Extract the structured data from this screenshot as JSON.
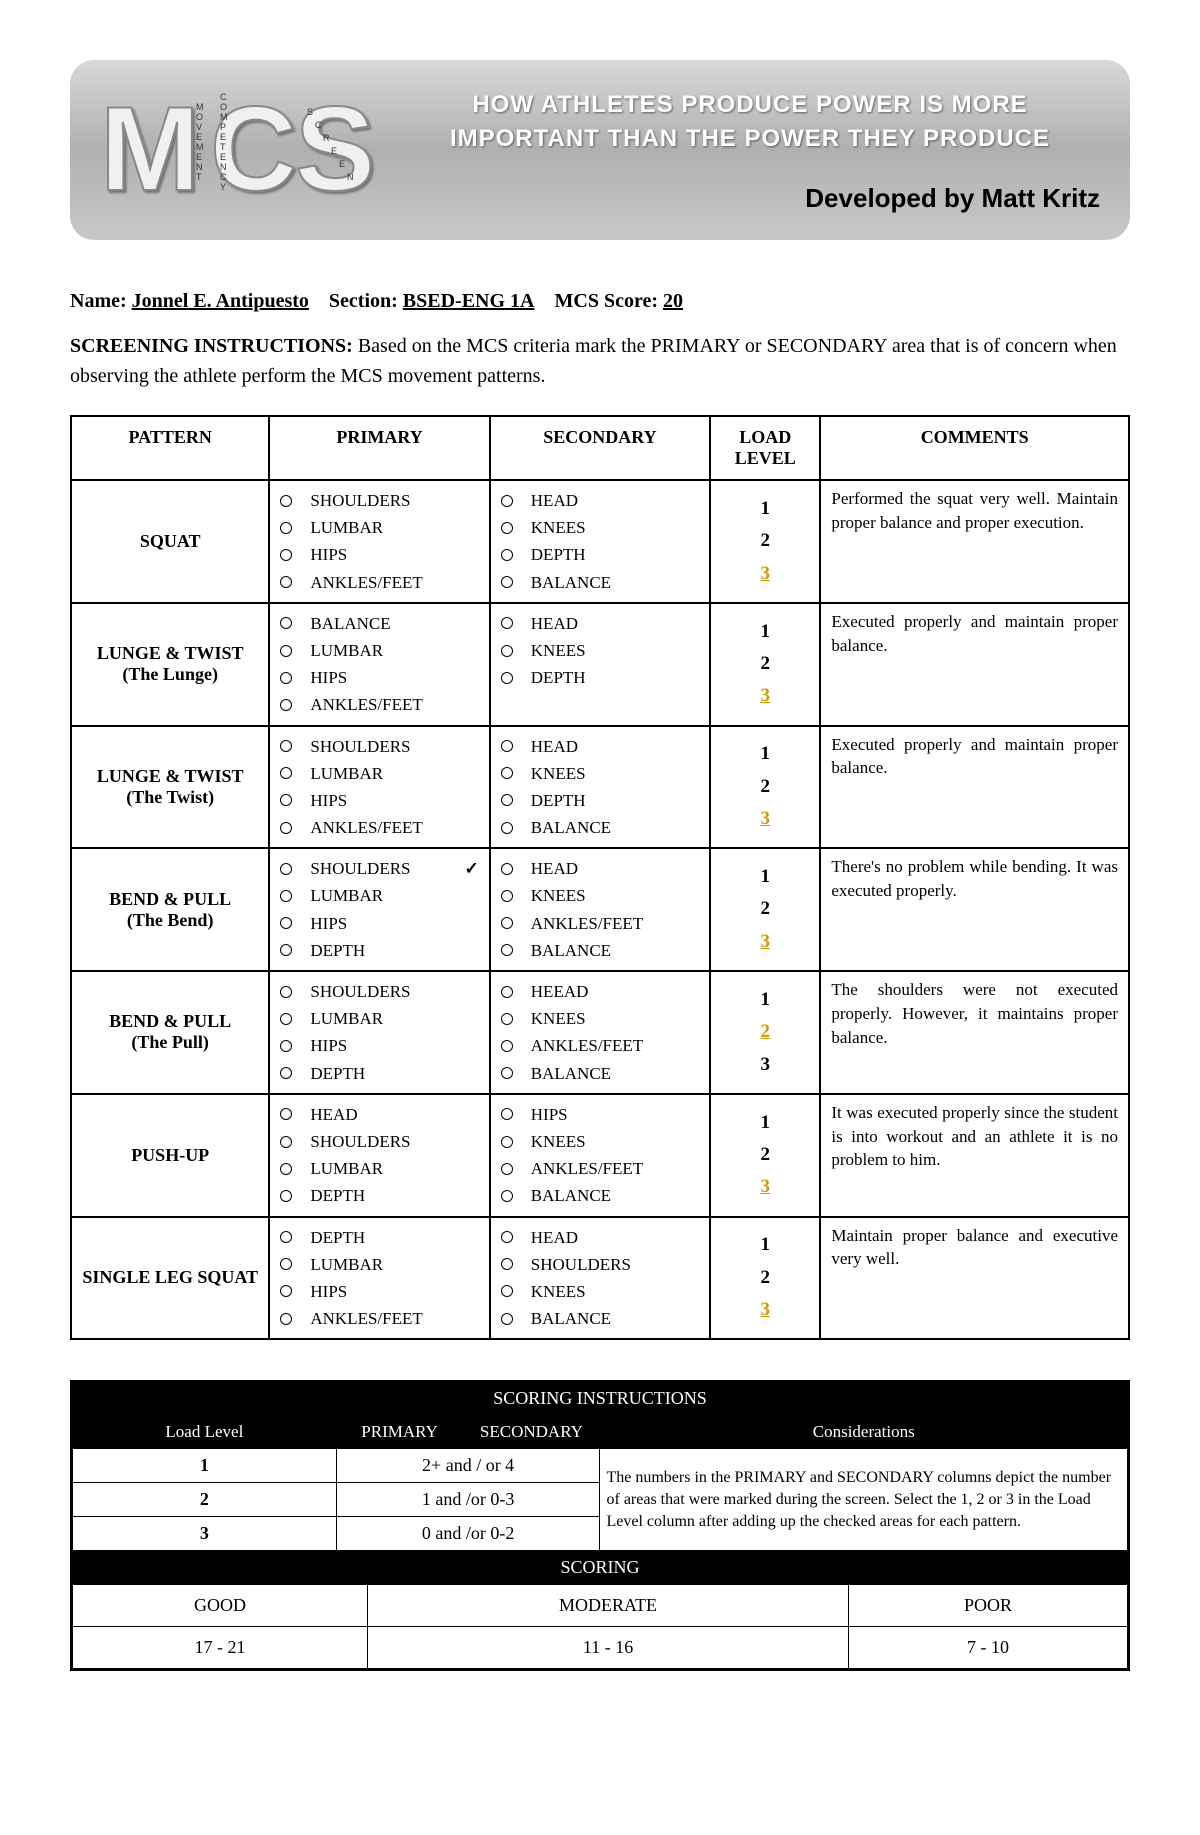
{
  "header": {
    "slogan_line1": "HOW ATHLETES PRODUCE POWER IS MORE",
    "slogan_line2": "IMPORTANT THAN THE POWER THEY PRODUCE",
    "developed_by": "Developed by Matt Kritz",
    "logo_letters": [
      "M",
      "C",
      "S"
    ],
    "logo_words": [
      "MOVEMENT",
      "COMPETENCY",
      "SCREEN"
    ]
  },
  "info": {
    "name_label": "Name:",
    "name_value": "Jonnel E. Antipuesto",
    "section_label": "Section:",
    "section_value": "BSED-ENG 1A",
    "score_label": "MCS Score:",
    "score_value": "20"
  },
  "instructions": {
    "label": "SCREENING INSTRUCTIONS:",
    "text": "Based on the MCS criteria mark the PRIMARY or SECONDARY area that is of concern when observing the athlete perform the MCS movement patterns."
  },
  "table": {
    "headers": [
      "PATTERN",
      "PRIMARY",
      "SECONDARY",
      "LOAD LEVEL",
      "COMMENTS"
    ],
    "rows": [
      {
        "pattern": "SQUAT",
        "primary": [
          {
            "t": "SHOULDERS"
          },
          {
            "t": "LUMBAR"
          },
          {
            "t": "HIPS"
          },
          {
            "t": "ANKLES/FEET"
          }
        ],
        "secondary": [
          {
            "t": "HEAD"
          },
          {
            "t": "KNEES"
          },
          {
            "t": "DEPTH"
          },
          {
            "t": "BALANCE"
          }
        ],
        "loads": [
          "1",
          "2",
          "3"
        ],
        "selected": 2,
        "comment": "Performed the squat very well. Maintain proper balance and proper execution."
      },
      {
        "pattern": "LUNGE & TWIST (The Lunge)",
        "primary": [
          {
            "t": "BALANCE"
          },
          {
            "t": "LUMBAR"
          },
          {
            "t": "HIPS"
          },
          {
            "t": "ANKLES/FEET"
          }
        ],
        "secondary": [
          {
            "t": "HEAD"
          },
          {
            "t": "KNEES"
          },
          {
            "t": "DEPTH"
          }
        ],
        "loads": [
          "1",
          "2",
          "3"
        ],
        "selected": 2,
        "comment": "Executed properly and maintain proper balance."
      },
      {
        "pattern": "LUNGE & TWIST (The Twist)",
        "primary": [
          {
            "t": "SHOULDERS"
          },
          {
            "t": "LUMBAR"
          },
          {
            "t": "HIPS"
          },
          {
            "t": "ANKLES/FEET"
          }
        ],
        "secondary": [
          {
            "t": "HEAD"
          },
          {
            "t": "KNEES"
          },
          {
            "t": "DEPTH"
          },
          {
            "t": "BALANCE"
          }
        ],
        "loads": [
          "1",
          "2",
          "3"
        ],
        "selected": 2,
        "comment": "Executed properly and maintain proper balance."
      },
      {
        "pattern": "BEND & PULL (The Bend)",
        "primary": [
          {
            "t": "SHOULDERS",
            "chk": true
          },
          {
            "t": "LUMBAR"
          },
          {
            "t": "HIPS"
          },
          {
            "t": "DEPTH"
          }
        ],
        "secondary": [
          {
            "t": "HEAD"
          },
          {
            "t": "KNEES"
          },
          {
            "t": "ANKLES/FEET"
          },
          {
            "t": "BALANCE"
          }
        ],
        "loads": [
          "1",
          "2",
          "3"
        ],
        "selected": 2,
        "comment": "There's no problem while bending. It was executed properly."
      },
      {
        "pattern": "BEND & PULL (The Pull)",
        "primary": [
          {
            "t": "SHOULDERS"
          },
          {
            "t": "LUMBAR"
          },
          {
            "t": "HIPS"
          },
          {
            "t": "DEPTH"
          }
        ],
        "secondary": [
          {
            "t": "HEEAD"
          },
          {
            "t": "KNEES"
          },
          {
            "t": "ANKLES/FEET"
          },
          {
            "t": "BALANCE"
          }
        ],
        "loads": [
          "1",
          "2",
          "3"
        ],
        "selected": 1,
        "comment": "The shoulders were not executed properly. However, it maintains proper balance."
      },
      {
        "pattern": "PUSH-UP",
        "primary": [
          {
            "t": "HEAD"
          },
          {
            "t": "SHOULDERS"
          },
          {
            "t": "LUMBAR"
          },
          {
            "t": "DEPTH"
          }
        ],
        "secondary": [
          {
            "t": "HIPS"
          },
          {
            "t": "KNEES"
          },
          {
            "t": "ANKLES/FEET"
          },
          {
            "t": "BALANCE"
          }
        ],
        "loads": [
          "1",
          "2",
          "3"
        ],
        "selected": 2,
        "comment": "It was executed properly since the student is into workout and an athlete it is no problem to him."
      },
      {
        "pattern": "SINGLE LEG SQUAT",
        "primary": [
          {
            "t": "DEPTH"
          },
          {
            "t": "LUMBAR"
          },
          {
            "t": "HIPS"
          },
          {
            "t": "ANKLES/FEET"
          }
        ],
        "secondary": [
          {
            "t": "HEAD"
          },
          {
            "t": "SHOULDERS"
          },
          {
            "t": "KNEES"
          },
          {
            "t": "BALANCE"
          }
        ],
        "loads": [
          "1",
          "2",
          "3"
        ],
        "selected": 2,
        "comment": "Maintain proper balance and executive very well."
      }
    ]
  },
  "scoring_instr": {
    "title": "SCORING INSTRUCTIONS",
    "headers": [
      "Load Level",
      "PRIMARY",
      "SECONDARY",
      "Considerations"
    ],
    "rows": [
      {
        "level": "1",
        "prim": "2+",
        "conj": "and / or",
        "sec": "4"
      },
      {
        "level": "2",
        "prim": "1",
        "conj": "and /or",
        "sec": "0-3"
      },
      {
        "level": "3",
        "prim": "0",
        "conj": "and /or",
        "sec": "0-2"
      }
    ],
    "considerations": "The numbers in the PRIMARY and SECONDARY columns depict the number of areas that were marked during the screen.  Select the 1, 2 or 3 in the Load Level column after adding up the checked areas for each pattern."
  },
  "scoring_final": {
    "title": "SCORING",
    "cols": [
      {
        "label": "GOOD",
        "range": "17 - 21"
      },
      {
        "label": "MODERATE",
        "range": "11 - 16"
      },
      {
        "label": "POOR",
        "range": "7 - 10"
      }
    ]
  },
  "colors": {
    "highlight": "#cc9900",
    "header_bg_top": "#d8d8d8",
    "header_bg_bot": "#b0b0b0"
  }
}
